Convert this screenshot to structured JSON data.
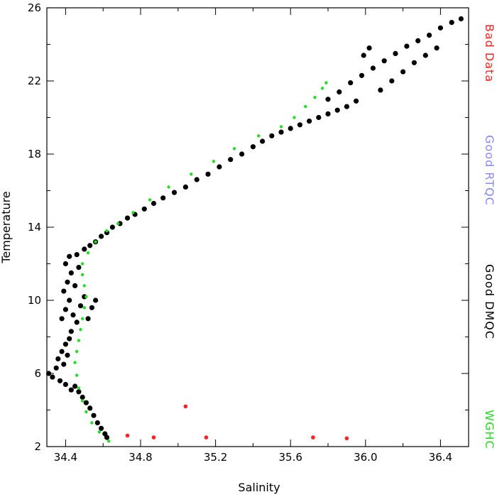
{
  "chart_data": {
    "type": "scatter",
    "title": "",
    "xlabel": "Salinity",
    "ylabel": "Temperature",
    "xlim": [
      34.3,
      36.55
    ],
    "ylim": [
      2,
      26
    ],
    "x_ticks": [
      34.4,
      34.8,
      35.2,
      35.6,
      36.0,
      36.4
    ],
    "x_tick_labels": [
      "34.4",
      "34.8",
      "35.2",
      "35.6",
      "36.0",
      "36.4"
    ],
    "y_ticks": [
      2,
      6,
      10,
      14,
      18,
      22,
      26
    ],
    "y_tick_labels": [
      "2",
      "6",
      "10",
      "14",
      "18",
      "22",
      "26"
    ],
    "grid": false,
    "legend": {
      "placement": "right (vertical text)",
      "entries": [
        {
          "label": "Bad Data",
          "color": "#ff2222"
        },
        {
          "label": "Good RTQC",
          "color": "#8888ff"
        },
        {
          "label": "Good DMQC",
          "color": "#000000"
        },
        {
          "label": "WGHC",
          "color": "#22dd22"
        }
      ]
    },
    "series": [
      {
        "name": "Good DMQC",
        "color": "#000000",
        "points": [
          [
            34.31,
            6.0
          ],
          [
            34.33,
            5.8
          ],
          [
            34.35,
            6.3
          ],
          [
            34.36,
            6.8
          ],
          [
            34.38,
            7.2
          ],
          [
            34.4,
            7.6
          ],
          [
            34.42,
            7.9
          ],
          [
            34.43,
            8.3
          ],
          [
            34.45,
            5.3
          ],
          [
            34.47,
            5.0
          ],
          [
            34.49,
            4.7
          ],
          [
            34.51,
            4.4
          ],
          [
            34.53,
            4.1
          ],
          [
            34.55,
            3.7
          ],
          [
            34.57,
            3.3
          ],
          [
            34.59,
            3.0
          ],
          [
            34.61,
            2.7
          ],
          [
            34.62,
            2.5
          ],
          [
            34.39,
            6.5
          ],
          [
            34.41,
            7.0
          ],
          [
            34.37,
            5.6
          ],
          [
            34.4,
            5.4
          ],
          [
            34.43,
            5.1
          ],
          [
            34.38,
            9.0
          ],
          [
            34.4,
            9.5
          ],
          [
            34.42,
            10.0
          ],
          [
            34.44,
            9.2
          ],
          [
            34.46,
            8.8
          ],
          [
            34.48,
            9.7
          ],
          [
            34.5,
            10.2
          ],
          [
            34.52,
            9.0
          ],
          [
            34.54,
            9.6
          ],
          [
            34.56,
            10.0
          ],
          [
            34.39,
            10.5
          ],
          [
            34.41,
            11.0
          ],
          [
            34.43,
            11.5
          ],
          [
            34.45,
            10.8
          ],
          [
            34.47,
            11.8
          ],
          [
            34.4,
            12.0
          ],
          [
            34.42,
            12.4
          ],
          [
            34.46,
            12.5
          ],
          [
            34.5,
            12.8
          ],
          [
            34.53,
            13.0
          ],
          [
            34.56,
            13.2
          ],
          [
            34.59,
            13.5
          ],
          [
            34.62,
            13.7
          ],
          [
            34.65,
            14.0
          ],
          [
            34.69,
            14.2
          ],
          [
            34.73,
            14.5
          ],
          [
            34.77,
            14.7
          ],
          [
            34.82,
            15.0
          ],
          [
            34.87,
            15.3
          ],
          [
            34.92,
            15.6
          ],
          [
            34.98,
            15.9
          ],
          [
            35.04,
            16.2
          ],
          [
            35.1,
            16.6
          ],
          [
            35.16,
            16.9
          ],
          [
            35.22,
            17.3
          ],
          [
            35.28,
            17.7
          ],
          [
            35.34,
            18.0
          ],
          [
            35.4,
            18.4
          ],
          [
            35.45,
            18.7
          ],
          [
            35.5,
            19.0
          ],
          [
            35.55,
            19.2
          ],
          [
            35.6,
            19.4
          ],
          [
            35.65,
            19.6
          ],
          [
            35.7,
            19.8
          ],
          [
            35.75,
            20.0
          ],
          [
            35.8,
            20.2
          ],
          [
            35.85,
            20.4
          ],
          [
            35.9,
            20.6
          ],
          [
            35.95,
            20.9
          ],
          [
            35.8,
            21.0
          ],
          [
            35.86,
            21.4
          ],
          [
            35.92,
            21.9
          ],
          [
            35.98,
            22.3
          ],
          [
            36.04,
            22.7
          ],
          [
            36.1,
            23.1
          ],
          [
            36.16,
            23.5
          ],
          [
            36.22,
            23.9
          ],
          [
            36.28,
            24.2
          ],
          [
            36.34,
            24.5
          ],
          [
            36.4,
            24.9
          ],
          [
            36.46,
            25.2
          ],
          [
            36.51,
            25.4
          ],
          [
            36.08,
            21.5
          ],
          [
            36.14,
            22.0
          ],
          [
            36.2,
            22.5
          ],
          [
            36.26,
            23.0
          ],
          [
            36.32,
            23.4
          ],
          [
            36.38,
            23.8
          ],
          [
            35.99,
            23.4
          ],
          [
            36.02,
            23.8
          ]
        ]
      },
      {
        "name": "WGHC",
        "color": "#22dd22",
        "points": [
          [
            34.63,
            2.3
          ],
          [
            34.58,
            2.8
          ],
          [
            34.54,
            3.3
          ],
          [
            34.51,
            3.9
          ],
          [
            34.49,
            4.5
          ],
          [
            34.47,
            5.2
          ],
          [
            34.46,
            5.9
          ],
          [
            34.45,
            6.6
          ],
          [
            34.46,
            7.2
          ],
          [
            34.47,
            7.8
          ],
          [
            34.48,
            8.4
          ],
          [
            34.49,
            9.0
          ],
          [
            34.5,
            9.6
          ],
          [
            34.51,
            10.2
          ],
          [
            34.5,
            10.8
          ],
          [
            34.49,
            11.4
          ],
          [
            34.49,
            12.0
          ],
          [
            34.52,
            12.6
          ],
          [
            34.56,
            13.2
          ],
          [
            34.62,
            13.8
          ],
          [
            34.68,
            14.2
          ],
          [
            34.76,
            14.8
          ],
          [
            34.85,
            15.5
          ],
          [
            34.95,
            16.2
          ],
          [
            35.07,
            16.9
          ],
          [
            35.19,
            17.6
          ],
          [
            35.3,
            18.3
          ],
          [
            35.43,
            19.0
          ],
          [
            35.55,
            19.5
          ],
          [
            35.62,
            20.0
          ],
          [
            35.68,
            20.6
          ],
          [
            35.73,
            21.1
          ],
          [
            35.77,
            21.6
          ],
          [
            35.79,
            21.9
          ]
        ]
      },
      {
        "name": "Bad Data",
        "color": "#ff2222",
        "points": [
          [
            34.73,
            2.6
          ],
          [
            34.87,
            2.5
          ],
          [
            35.04,
            4.2
          ],
          [
            35.15,
            2.5
          ],
          [
            35.72,
            2.5
          ],
          [
            35.9,
            2.45
          ]
        ]
      }
    ]
  }
}
